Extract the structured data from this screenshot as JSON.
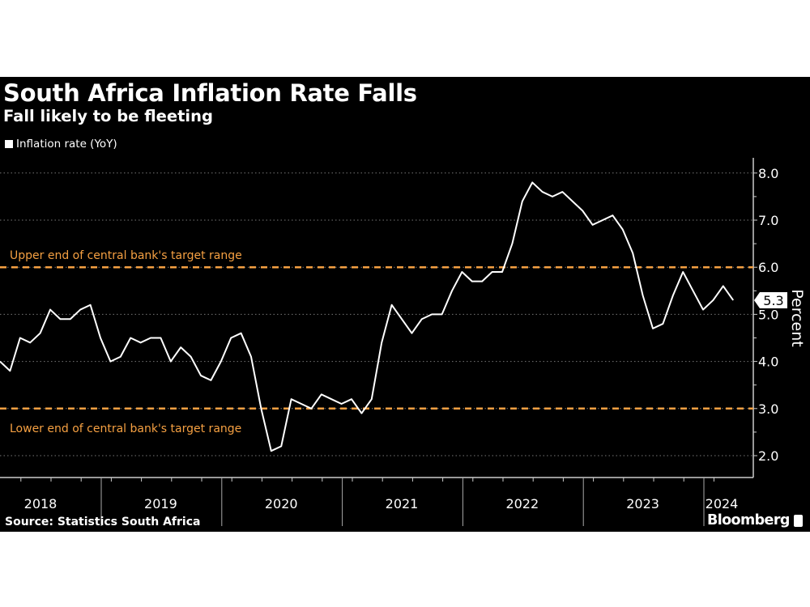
{
  "chart_data": {
    "type": "line",
    "title": "South Africa Inflation Rate Falls",
    "subtitle": "Fall likely to be fleeting",
    "ylabel": "Percent",
    "ylim": [
      1.6,
      8.3
    ],
    "yticks": [
      "2.0",
      "3.0",
      "4.0",
      "5.0",
      "6.0",
      "7.0",
      "8.0"
    ],
    "ytick_values": [
      2,
      3,
      4,
      5,
      6,
      7,
      8
    ],
    "grid": true,
    "legend_placement": "top-left",
    "start": "2018-02",
    "end": "2024-03",
    "x_tick_labels": [
      "2018",
      "2019",
      "2020",
      "2021",
      "2022",
      "2023",
      "2024"
    ],
    "series": [
      {
        "name": "Inflation rate (YoY)",
        "color": "#ffffff",
        "values": [
          4.0,
          3.8,
          4.5,
          4.4,
          4.6,
          5.1,
          4.9,
          4.9,
          5.1,
          5.2,
          4.5,
          4.0,
          4.1,
          4.5,
          4.4,
          4.5,
          4.5,
          4.0,
          4.3,
          4.1,
          3.7,
          3.6,
          4.0,
          4.5,
          4.6,
          4.1,
          3.0,
          2.1,
          2.2,
          3.2,
          3.1,
          3.0,
          3.3,
          3.2,
          3.1,
          3.2,
          2.9,
          3.2,
          4.4,
          5.2,
          4.9,
          4.6,
          4.9,
          5.0,
          5.0,
          5.5,
          5.9,
          5.7,
          5.7,
          5.9,
          5.9,
          6.5,
          7.4,
          7.8,
          7.6,
          7.5,
          7.6,
          7.4,
          7.2,
          6.9,
          7.0,
          7.1,
          6.8,
          6.3,
          5.4,
          4.7,
          4.8,
          5.4,
          5.9,
          5.5,
          5.1,
          5.3,
          5.6,
          5.3
        ]
      }
    ],
    "reference_lines": [
      {
        "value": 6.0,
        "label": "Upper end of central bank's target range",
        "color": "#f5a042"
      },
      {
        "value": 3.0,
        "label": "Lower end of central bank's target range",
        "color": "#f5a042"
      }
    ],
    "last_value_label": "5.3"
  },
  "source": "Source: Statistics South Africa",
  "brand": "Bloomberg"
}
